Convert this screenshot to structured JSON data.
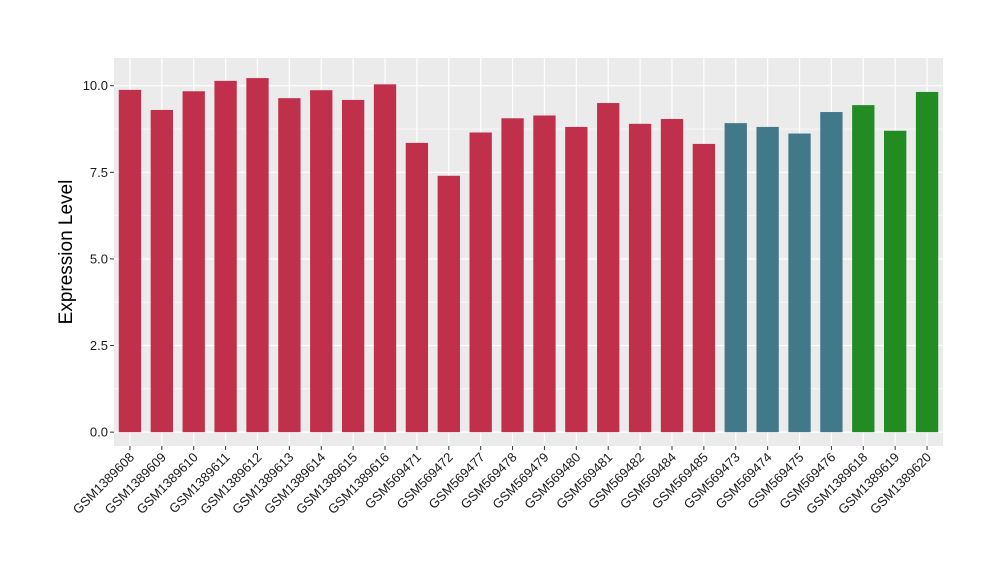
{
  "chart_data": {
    "type": "bar",
    "title": "",
    "xlabel": "",
    "ylabel": "Expression Level",
    "ylim": [
      -0.4,
      10.8
    ],
    "yticks": [
      "0.0",
      "2.5",
      "5.0",
      "7.5",
      "10.0"
    ],
    "grid": true,
    "legend": "none",
    "categories": [
      "GSM1389608",
      "GSM1389609",
      "GSM1389610",
      "GSM1389611",
      "GSM1389612",
      "GSM1389613",
      "GSM1389614",
      "GSM1389615",
      "GSM1389616",
      "GSM569471",
      "GSM569472",
      "GSM569477",
      "GSM569478",
      "GSM569479",
      "GSM569480",
      "GSM569481",
      "GSM569482",
      "GSM569484",
      "GSM569485",
      "GSM569473",
      "GSM569474",
      "GSM569475",
      "GSM569476",
      "GSM1389618",
      "GSM1389619",
      "GSM1389620"
    ],
    "values": [
      9.88,
      9.3,
      9.84,
      10.14,
      10.22,
      9.64,
      9.87,
      9.59,
      10.04,
      8.35,
      7.4,
      8.65,
      9.06,
      9.14,
      8.81,
      9.5,
      8.9,
      9.04,
      8.32,
      8.92,
      8.81,
      8.62,
      9.24,
      9.44,
      8.7,
      9.82
    ],
    "bar_colors": [
      "#c0304a",
      "#c0304a",
      "#c0304a",
      "#c0304a",
      "#c0304a",
      "#c0304a",
      "#c0304a",
      "#c0304a",
      "#c0304a",
      "#c0304a",
      "#c0304a",
      "#c0304a",
      "#c0304a",
      "#c0304a",
      "#c0304a",
      "#c0304a",
      "#c0304a",
      "#c0304a",
      "#c0304a",
      "#41788a",
      "#41788a",
      "#41788a",
      "#41788a",
      "#228b22",
      "#228b22",
      "#228b22"
    ],
    "panel_background": "#ebebeb",
    "grid_color": "#ffffff"
  }
}
